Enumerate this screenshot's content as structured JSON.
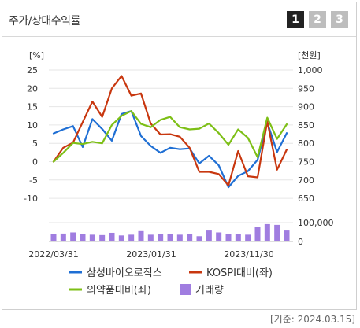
{
  "header": {
    "title": "주가/상대수익률",
    "tabs": [
      {
        "label": "1",
        "active": true
      },
      {
        "label": "2",
        "active": false
      },
      {
        "label": "3",
        "active": false
      }
    ]
  },
  "footer": {
    "base_date": "[기준: 2024.03.15]"
  },
  "colors": {
    "stock": "#1f6fd4",
    "kospi": "#c8370f",
    "industry": "#7dbf16",
    "volume": "#a07de0",
    "grid": "#e6e6e6"
  },
  "chart_data": {
    "type": "line",
    "left_axis": {
      "unit": "[%]",
      "min": -10,
      "max": 25,
      "ticks": [
        "25",
        "20",
        "15",
        "10",
        "5",
        "0",
        "-5",
        "-10"
      ]
    },
    "right_axis": {
      "unit": "[천원]",
      "min": 650,
      "max": 1000,
      "ticks": [
        "1,000",
        "950",
        "900",
        "850",
        "800",
        "750",
        "700",
        "650"
      ]
    },
    "volume_axis": {
      "ticks": [
        "100,000",
        "0"
      ]
    },
    "x_labels": [
      "2022/03/31",
      "2023/01/31",
      "2023/11/30"
    ],
    "series": [
      {
        "name": "삼성바이오로직스",
        "key": "stock",
        "values": [
          7.7,
          8.8,
          9.7,
          4.0,
          11.6,
          8.9,
          5.7,
          13.0,
          13.8,
          7.0,
          4.3,
          2.4,
          3.8,
          3.4,
          3.6,
          -0.5,
          1.6,
          -1.0,
          -7.0,
          -3.9,
          -2.6,
          0.5,
          10.7,
          2.6,
          7.8
        ]
      },
      {
        "name": "KOSPI대비(좌)",
        "key": "kospi",
        "values": [
          0.0,
          3.8,
          5.2,
          10.8,
          16.4,
          12.2,
          20.0,
          23.4,
          18.0,
          18.6,
          10.4,
          7.4,
          7.5,
          6.8,
          3.8,
          -2.8,
          -2.8,
          -3.4,
          -6.5,
          2.9,
          -4.0,
          -4.3,
          11.0,
          -2.2,
          3.3
        ]
      },
      {
        "name": "의약품대비(좌)",
        "key": "industry",
        "values": [
          0.0,
          2.4,
          5.1,
          4.8,
          5.4,
          5.0,
          10.0,
          12.5,
          13.8,
          10.3,
          9.4,
          11.4,
          12.2,
          9.4,
          8.8,
          9.0,
          10.4,
          7.8,
          4.6,
          8.8,
          6.5,
          1.2,
          12.0,
          6.2,
          10.2
        ]
      }
    ],
    "volume": {
      "name": "거래량",
      "values": [
        40000,
        42000,
        48000,
        38000,
        36000,
        34000,
        46000,
        32000,
        36000,
        55000,
        36000,
        38000,
        40000,
        36000,
        40000,
        28000,
        58000,
        48000,
        38000,
        40000,
        36000,
        75000,
        92000,
        88000,
        58000
      ]
    }
  }
}
